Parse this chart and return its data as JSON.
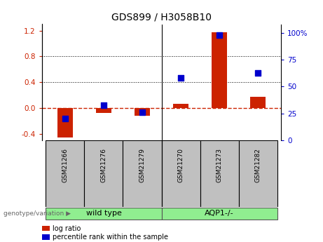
{
  "title": "GDS899 / H3058B10",
  "categories": [
    "GSM21266",
    "GSM21276",
    "GSM21279",
    "GSM21270",
    "GSM21273",
    "GSM21282"
  ],
  "log_ratio": [
    -0.45,
    -0.08,
    -0.12,
    0.07,
    1.18,
    0.18
  ],
  "percentile_rank": [
    20,
    33,
    26,
    58,
    98,
    63
  ],
  "bar_color": "#CC2200",
  "dot_color": "#0000CC",
  "zero_line_color": "#CC2200",
  "ylim_left": [
    -0.5,
    1.3
  ],
  "ylim_right": [
    0,
    108
  ],
  "yticks_left": [
    -0.4,
    0.0,
    0.4,
    0.8,
    1.2
  ],
  "yticks_right": [
    0,
    25,
    50,
    75,
    100
  ],
  "ytick_labels_right": [
    "0",
    "25",
    "50",
    "75",
    "100%"
  ],
  "hlines": [
    0.4,
    0.8
  ],
  "background_color": "#ffffff",
  "group_bg_color": "#C0C0C0",
  "green_color": "#90EE90",
  "legend_log_ratio": "log ratio",
  "legend_percentile": "percentile rank within the sample",
  "genotype_label": "genotype/variation",
  "wild_type_label": "wild type",
  "aqp_label": "AQP1-/-",
  "bar_width": 0.4,
  "dot_size": 35
}
